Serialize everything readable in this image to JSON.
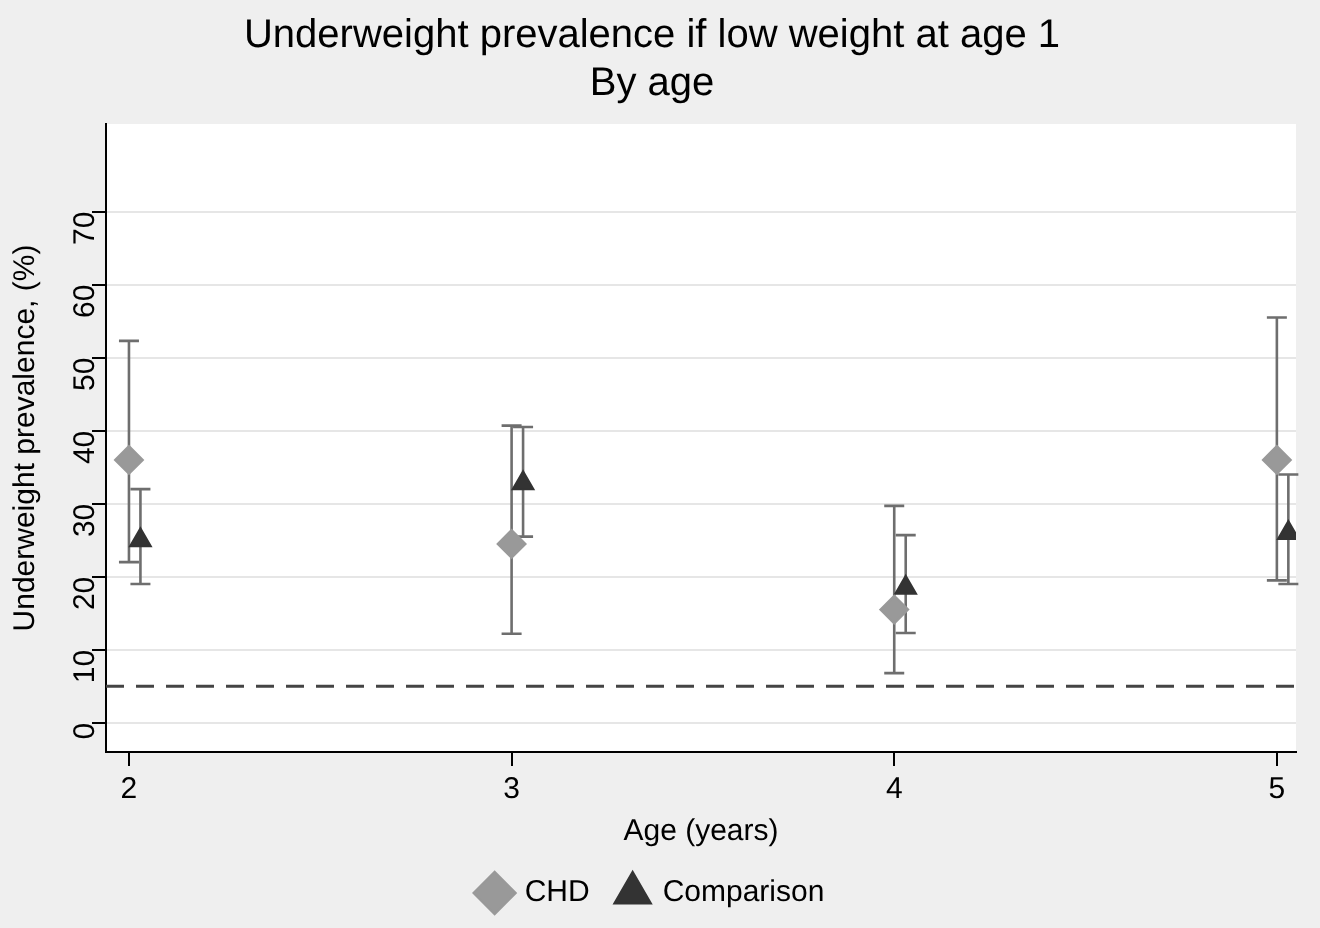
{
  "chart_data": {
    "type": "scatter",
    "title": "Underweight prevalence if low weight at age 1",
    "subtitle": "By age",
    "xlabel": "Age (years)",
    "ylabel": "Underweight prevalence, (%)",
    "xlim": [
      1.94,
      5.05
    ],
    "xticks": [
      2,
      3,
      4,
      5
    ],
    "ylim": [
      -4,
      82
    ],
    "yticks": [
      0,
      10,
      20,
      30,
      40,
      50,
      60,
      70
    ],
    "grid": "y",
    "legend": "bottom",
    "series": [
      {
        "name": "CHD",
        "color": "#999999",
        "marker": "diamond",
        "x": [
          2,
          3,
          4,
          5
        ],
        "values": [
          36,
          24.5,
          15.5,
          36
        ],
        "errors": [
          [
            22,
            52.3
          ],
          [
            12.2,
            40.7
          ],
          [
            6.8,
            29.7
          ],
          [
            19.5,
            55.5
          ]
        ]
      },
      {
        "name": "Comparison",
        "color": "#333333",
        "marker": "triangle",
        "x": [
          2.03,
          3.03,
          4.03,
          5.03
        ],
        "values": [
          25,
          32.8,
          18.5,
          26
        ],
        "errors": [
          [
            19,
            32
          ],
          [
            25.5,
            40.5
          ],
          [
            12.3,
            25.7
          ],
          [
            19,
            34
          ]
        ]
      }
    ],
    "ref_lines": [
      {
        "axis": "y",
        "value": 5,
        "color": "#444444",
        "line_style": "dashed"
      }
    ]
  }
}
